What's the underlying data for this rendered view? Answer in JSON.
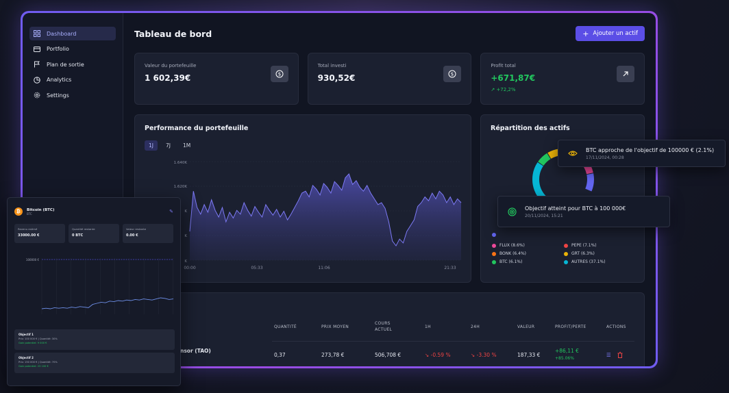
{
  "sidebar": {
    "items": [
      {
        "label": "Dashboard",
        "icon": "grid-icon",
        "active": true
      },
      {
        "label": "Portfolio",
        "icon": "wallet-icon"
      },
      {
        "label": "Plan de sortie",
        "icon": "flag-icon"
      },
      {
        "label": "Analytics",
        "icon": "pie-chart-icon"
      },
      {
        "label": "Settings",
        "icon": "gear-icon"
      }
    ]
  },
  "header": {
    "title": "Tableau de bord",
    "add_button": "Ajouter un actif"
  },
  "cards": [
    {
      "label": "Valeur du portefeuille",
      "value": "1 602,39€"
    },
    {
      "label": "Total investi",
      "value": "930,52€"
    },
    {
      "label": "Profit total",
      "value": "+671,87€",
      "delta": "+72,2%"
    }
  ],
  "performance": {
    "title": "Performance du portefeuille",
    "tabs": [
      "1J",
      "7J",
      "1M"
    ],
    "active_tab": "1J",
    "y_ticks": [
      "1.640K",
      "1.620K",
      "K",
      "K",
      "K"
    ],
    "x_ticks": [
      "00:00",
      "05:33",
      "11:06",
      "21:33"
    ]
  },
  "allocation": {
    "title": "Répartition des actifs",
    "legend": [
      {
        "name": "FLUX (8.6%)",
        "color": "#ec4899"
      },
      {
        "name": "PEPE (7.1%)",
        "color": "#ef4444"
      },
      {
        "name": "BONK (6.4%)",
        "color": "#f97316"
      },
      {
        "name": "GRT (6.3%)",
        "color": "#eab308"
      },
      {
        "name": "BTC (6.1%)",
        "color": "#22c55e"
      },
      {
        "name": "AUTRES (37.1%)",
        "color": "#06b6d4"
      }
    ]
  },
  "table": {
    "headers": {
      "qty": "QUANTITÉ",
      "avg": "PRIX MOYEN",
      "cur": "COURS ACTUEL",
      "h1": "1H",
      "h24": "24H",
      "val": "VALEUR",
      "pl": "PROFIT/PERTE",
      "act": "ACTIONS"
    },
    "row": {
      "name": "nsor (TAO)",
      "qty": "0,37",
      "avg": "273,78 €",
      "cur": "506,708 €",
      "h1": "-0.59 %",
      "h24": "-3.30 %",
      "val": "187,33 €",
      "pl": "+86,11 €",
      "pl_pct": "+85.06%"
    }
  },
  "toasts": [
    {
      "title": "BTC approche de l'objectif de 100000 € (2.1%)",
      "time": "17/11/2024, 00:28"
    },
    {
      "title": "Objectif atteint pour BTC à 100 000€",
      "time": "20/11/2024, 15:21"
    }
  ],
  "mini": {
    "name": "Bitcoin (BTC)",
    "symbol": "BTC",
    "stats": [
      {
        "label": "Revenu estimé",
        "value": "33000.00 €"
      },
      {
        "label": "Quantité restante",
        "value": "0 BTC"
      },
      {
        "label": "Valeur restante",
        "value": "0.00 €"
      }
    ],
    "y_tick": "100000 €",
    "objectives": [
      {
        "title": "Objectif 1",
        "line": "Prix: 100 000 € | Quantité: 30%",
        "gain": "Gain potentiel: 9 000 €"
      },
      {
        "title": "Objectif 2",
        "line": "Prix: 150 000 € | Quantité: 70%",
        "gain": "Gain potentiel: 23 100 €"
      }
    ]
  }
}
